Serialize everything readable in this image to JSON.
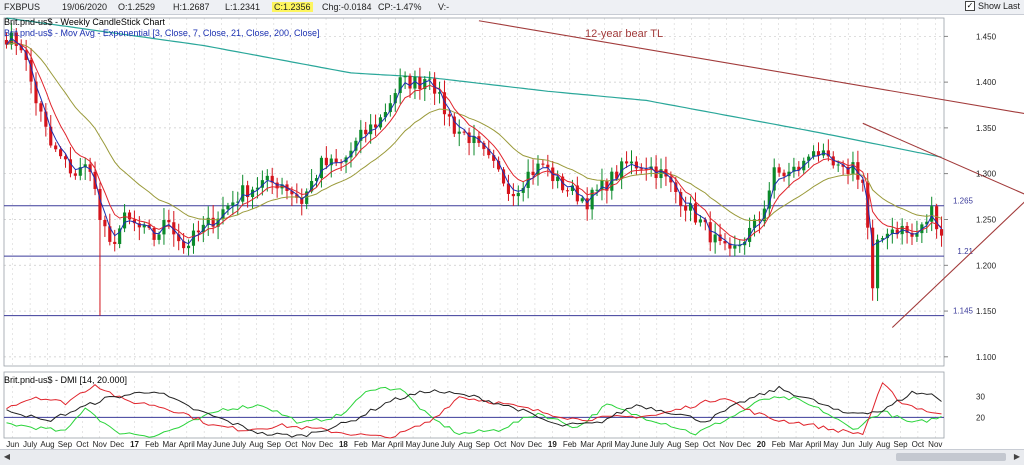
{
  "header": {
    "symbol": "FXBPUS",
    "date": "19/06/2020",
    "open": "O:1.2529",
    "high": "H:1.2687",
    "low": "L:1.2341",
    "close": "C:1.2356",
    "change": "Chg:-0.0184",
    "change_pct": "CP:-1.47%",
    "v": "V:-",
    "show_last": "Show Last",
    "show_last_checked": true
  },
  "chart_title_1": "Brit.pnd-us$ - Weekly CandleStick Chart",
  "chart_title_2": "Brit.pnd-us$ - Mov Avg - Exponential [3, Close, 7, Close, 21, Close, 200, Close]",
  "annotation": "12-year bear TL",
  "dmi_title": "Brit.pnd-us$ - DMI [14, 20.000]",
  "colors": {
    "up": "#0b8a2a",
    "down": "#d4141c",
    "ema3": "#1a2fb0",
    "ema7": "#e0242c",
    "ema21": "#9a9a3a",
    "ema200": "#2aa79a",
    "hline": "#3b3b9a",
    "trend": "#a23b3b",
    "dmi_adx": "#222222",
    "dmi_plus": "#2bd43b",
    "dmi_minus": "#e0242c"
  },
  "chart_data": {
    "type": "candlestick",
    "ylim": [
      1.09,
      1.47
    ],
    "y_ticks": [
      "1.450",
      "1.400",
      "1.350",
      "1.300",
      "1.250",
      "1.200",
      "1.150",
      "1.100"
    ],
    "horizontal_levels": [
      {
        "value": 1.265,
        "label": "1.265"
      },
      {
        "value": 1.21,
        "label": "1.21"
      },
      {
        "value": 1.145,
        "label": "1.145"
      }
    ],
    "x_labels": [
      "Jun",
      "July",
      "Aug",
      "Sep",
      "Oct",
      "Nov",
      "Dec",
      "17",
      "Feb",
      "Mar",
      "April",
      "May",
      "June",
      "July",
      "Aug",
      "Sep",
      "Oct",
      "Nov",
      "Dec",
      "18",
      "Feb",
      "Mar",
      "April",
      "May",
      "June",
      "July",
      "Aug",
      "Sep",
      "Oct",
      "Nov",
      "Dec",
      "19",
      "Feb",
      "Mar",
      "April",
      "May",
      "June",
      "July",
      "Aug",
      "Sep",
      "Oct",
      "Nov",
      "Dec",
      "20",
      "Feb",
      "Mar",
      "April",
      "May",
      "Jun",
      "July",
      "Aug",
      "Sep",
      "Oct",
      "Nov"
    ],
    "price_anchors": [
      [
        0,
        1.45
      ],
      [
        3,
        1.44
      ],
      [
        6,
        1.38
      ],
      [
        9,
        1.33
      ],
      [
        12,
        1.31
      ],
      [
        14,
        1.3
      ],
      [
        17,
        1.31
      ],
      [
        19,
        1.25
      ],
      [
        21,
        1.22
      ],
      [
        24,
        1.25
      ],
      [
        27,
        1.24
      ],
      [
        30,
        1.23
      ],
      [
        33,
        1.25
      ],
      [
        36,
        1.22
      ],
      [
        40,
        1.24
      ],
      [
        44,
        1.26
      ],
      [
        48,
        1.28
      ],
      [
        52,
        1.29
      ],
      [
        56,
        1.29
      ],
      [
        60,
        1.27
      ],
      [
        64,
        1.31
      ],
      [
        68,
        1.31
      ],
      [
        72,
        1.34
      ],
      [
        76,
        1.36
      ],
      [
        80,
        1.4
      ],
      [
        84,
        1.4
      ],
      [
        86,
        1.41
      ],
      [
        88,
        1.38
      ],
      [
        91,
        1.35
      ],
      [
        94,
        1.34
      ],
      [
        97,
        1.32
      ],
      [
        100,
        1.3
      ],
      [
        103,
        1.28
      ],
      [
        106,
        1.3
      ],
      [
        109,
        1.31
      ],
      [
        112,
        1.29
      ],
      [
        115,
        1.28
      ],
      [
        118,
        1.27
      ],
      [
        122,
        1.29
      ],
      [
        126,
        1.31
      ],
      [
        130,
        1.31
      ],
      [
        133,
        1.3
      ],
      [
        136,
        1.28
      ],
      [
        139,
        1.26
      ],
      [
        142,
        1.24
      ],
      [
        145,
        1.22
      ],
      [
        147,
        1.21
      ],
      [
        150,
        1.23
      ],
      [
        153,
        1.25
      ],
      [
        156,
        1.3
      ],
      [
        159,
        1.3
      ],
      [
        162,
        1.31
      ],
      [
        164,
        1.33
      ],
      [
        167,
        1.31
      ],
      [
        170,
        1.3
      ],
      [
        172,
        1.31
      ],
      [
        174,
        1.29
      ],
      [
        175,
        1.24
      ],
      [
        176,
        1.17
      ],
      [
        177,
        1.22
      ],
      [
        179,
        1.24
      ],
      [
        182,
        1.24
      ],
      [
        184,
        1.23
      ],
      [
        186,
        1.24
      ],
      [
        188,
        1.26
      ],
      [
        190,
        1.236
      ]
    ],
    "n_weeks": 191,
    "ema200_anchors": [
      [
        0,
        1.47
      ],
      [
        40,
        1.44
      ],
      [
        70,
        1.41
      ],
      [
        86,
        1.405
      ],
      [
        110,
        1.39
      ],
      [
        130,
        1.38
      ],
      [
        150,
        1.36
      ],
      [
        165,
        1.345
      ],
      [
        190,
        1.318
      ]
    ],
    "bear_trendline": {
      "from": [
        96,
        1.467
      ],
      "to": [
        224,
        1.35
      ]
    },
    "triangle_upper": {
      "from": [
        174,
        1.355
      ],
      "to": [
        208,
        1.275
      ]
    },
    "triangle_lower": {
      "from": [
        180,
        1.132
      ],
      "to": [
        208,
        1.275
      ]
    },
    "dmi": {
      "ylim": [
        10,
        40
      ],
      "y_ticks": [
        "30",
        "20"
      ],
      "level": 20,
      "adx_anchors": [
        [
          0,
          24
        ],
        [
          8,
          18
        ],
        [
          20,
          29
        ],
        [
          30,
          33
        ],
        [
          38,
          24
        ],
        [
          45,
          18
        ],
        [
          52,
          12
        ],
        [
          60,
          11
        ],
        [
          70,
          18
        ],
        [
          78,
          28
        ],
        [
          86,
          33
        ],
        [
          95,
          30
        ],
        [
          104,
          24
        ],
        [
          112,
          16
        ],
        [
          120,
          17
        ],
        [
          128,
          26
        ],
        [
          136,
          22
        ],
        [
          142,
          18
        ],
        [
          150,
          28
        ],
        [
          157,
          34
        ],
        [
          164,
          28
        ],
        [
          170,
          22
        ],
        [
          178,
          23
        ],
        [
          184,
          32
        ],
        [
          188,
          31
        ],
        [
          190,
          28
        ]
      ],
      "plus_anchors": [
        [
          0,
          17
        ],
        [
          6,
          15
        ],
        [
          12,
          13
        ],
        [
          16,
          25
        ],
        [
          22,
          13
        ],
        [
          30,
          11
        ],
        [
          36,
          16
        ],
        [
          44,
          24
        ],
        [
          52,
          26
        ],
        [
          60,
          17
        ],
        [
          68,
          21
        ],
        [
          74,
          34
        ],
        [
          80,
          34
        ],
        [
          86,
          20
        ],
        [
          92,
          12
        ],
        [
          100,
          14
        ],
        [
          108,
          22
        ],
        [
          116,
          15
        ],
        [
          122,
          26
        ],
        [
          128,
          21
        ],
        [
          134,
          17
        ],
        [
          140,
          12
        ],
        [
          148,
          21
        ],
        [
          154,
          29
        ],
        [
          160,
          29
        ],
        [
          166,
          23
        ],
        [
          172,
          14
        ],
        [
          178,
          23
        ],
        [
          184,
          17
        ],
        [
          190,
          20
        ]
      ],
      "minus_anchors": [
        [
          0,
          25
        ],
        [
          6,
          30
        ],
        [
          12,
          27
        ],
        [
          18,
          36
        ],
        [
          24,
          28
        ],
        [
          30,
          26
        ],
        [
          36,
          22
        ],
        [
          42,
          16
        ],
        [
          48,
          14
        ],
        [
          56,
          16
        ],
        [
          64,
          14
        ],
        [
          70,
          12
        ],
        [
          78,
          10
        ],
        [
          86,
          18
        ],
        [
          92,
          30
        ],
        [
          100,
          27
        ],
        [
          108,
          23
        ],
        [
          116,
          19
        ],
        [
          124,
          20
        ],
        [
          132,
          21
        ],
        [
          140,
          26
        ],
        [
          146,
          30
        ],
        [
          150,
          24
        ],
        [
          156,
          19
        ],
        [
          162,
          17
        ],
        [
          168,
          14
        ],
        [
          174,
          12
        ],
        [
          178,
          36
        ],
        [
          182,
          27
        ],
        [
          186,
          24
        ],
        [
          190,
          21
        ]
      ]
    }
  }
}
